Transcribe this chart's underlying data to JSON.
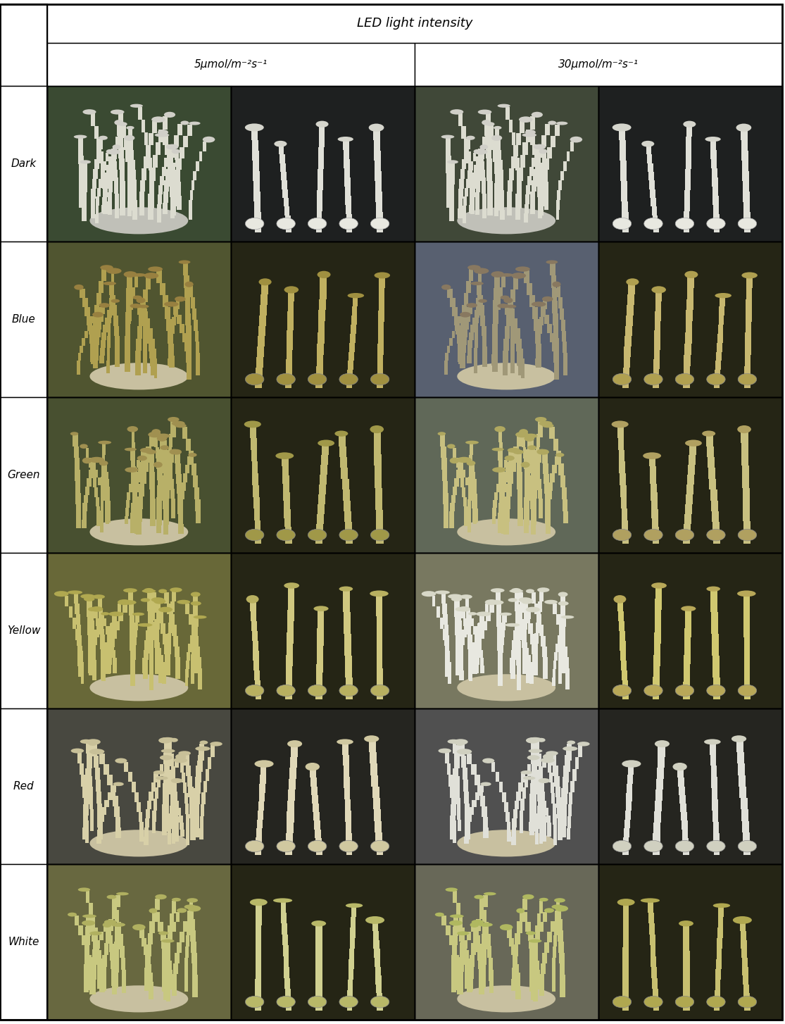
{
  "title_row": "LED light intensity",
  "col_group_labels": [
    "5μmol/m⁻²s⁻¹",
    "30μmol/m⁻²s⁻¹"
  ],
  "row_labels": [
    "Dark",
    "Blue",
    "Green",
    "Yellow",
    "Red",
    "White"
  ],
  "fig_width": 11.15,
  "fig_height": 14.54,
  "dpi": 100,
  "background_color": "#ffffff",
  "border_color": "#000000",
  "title_fontsize": 13,
  "label_fontsize": 11,
  "subheader_fontsize": 11,
  "cell_avg_colors": [
    [
      "#3a4530",
      "#252528",
      "#3a4535",
      "#252528"
    ],
    [
      "#5a5530",
      "#282818",
      "#606870",
      "#282828"
    ],
    [
      "#505030",
      "#282818",
      "#687060",
      "#282828"
    ],
    [
      "#706838",
      "#282818",
      "#787858",
      "#282828"
    ],
    [
      "#484840",
      "#282818",
      "#505048",
      "#282828"
    ],
    [
      "#686840",
      "#282818",
      "#686858",
      "#282828"
    ]
  ],
  "mushroom_data": {
    "Dark": {
      "c0_bg": "#3a4a32",
      "c0_stem": "#dcdcd0",
      "c0_cap": "#d0cfc8",
      "c1_bg": "#1e2020",
      "c1_stem": "#e0e0d8",
      "c1_cap": "#d5d5cc",
      "c2_bg": "#404838",
      "c2_stem": "#dcdcd0",
      "c2_cap": "#d0cfc8",
      "c3_bg": "#1e2020",
      "c3_stem": "#e0e0d8",
      "c3_cap": "#d5d5cc"
    },
    "Blue": {
      "c0_bg": "#505530",
      "c0_stem": "#b0a050",
      "c0_cap": "#988040",
      "c1_bg": "#252515",
      "c1_stem": "#c0b060",
      "c1_cap": "#a09040",
      "c2_bg": "#586070",
      "c2_stem": "#a09878",
      "c2_cap": "#887860",
      "c3_bg": "#252515",
      "c3_stem": "#c8b870",
      "c3_cap": "#b0a050"
    },
    "Green": {
      "c0_bg": "#485030",
      "c0_stem": "#b8b068",
      "c0_cap": "#a09050",
      "c1_bg": "#252515",
      "c1_stem": "#c0b870",
      "c1_cap": "#a09848",
      "c2_bg": "#606858",
      "c2_stem": "#c8c080",
      "c2_cap": "#b0a860",
      "c3_bg": "#252515",
      "c3_stem": "#c8c080",
      "c3_cap": "#b0a060"
    },
    "Yellow": {
      "c0_bg": "#686838",
      "c0_stem": "#c8c070",
      "c0_cap": "#b0a850",
      "c1_bg": "#252515",
      "c1_stem": "#d0c880",
      "c1_cap": "#b8b060",
      "c2_bg": "#787860",
      "c2_stem": "#e8e8e0",
      "c2_cap": "#d8d8c8",
      "c3_bg": "#252515",
      "c3_stem": "#d0c870",
      "c3_cap": "#b8a858"
    },
    "Red": {
      "c0_bg": "#484840",
      "c0_stem": "#d8d0a8",
      "c0_cap": "#c8c098",
      "c1_bg": "#252520",
      "c1_stem": "#e0d8b8",
      "c1_cap": "#d0c8a0",
      "c2_bg": "#505050",
      "c2_stem": "#e0e0d8",
      "c2_cap": "#d0d0c0",
      "c3_bg": "#252520",
      "c3_stem": "#e0e0d8",
      "c3_cap": "#d0d0c0"
    },
    "White": {
      "c0_bg": "#686840",
      "c0_stem": "#c8c880",
      "c0_cap": "#b0b060",
      "c1_bg": "#252515",
      "c1_stem": "#d0d090",
      "c1_cap": "#b8b868",
      "c2_bg": "#686858",
      "c2_stem": "#c8c880",
      "c2_cap": "#b0b860",
      "c3_bg": "#252515",
      "c3_stem": "#c8c070",
      "c3_cap": "#b0a850"
    }
  }
}
